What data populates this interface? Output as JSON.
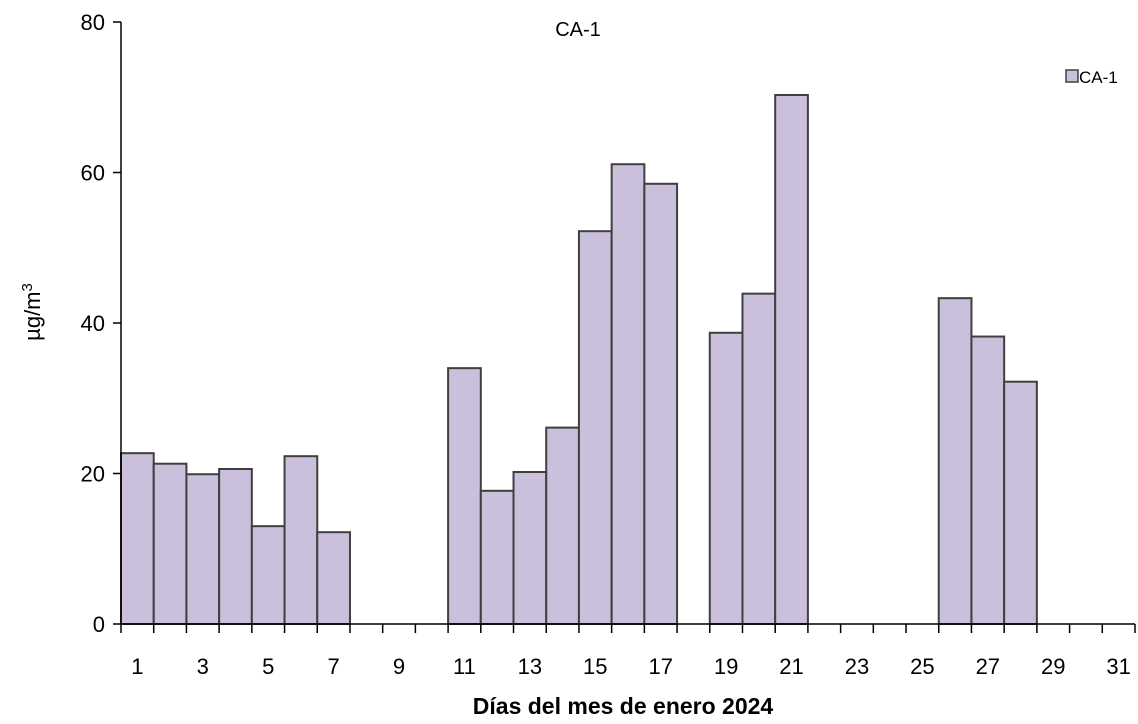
{
  "chart_data": {
    "type": "bar",
    "title": "CA-1",
    "xlabel": "Días del mes de enero 2024",
    "ylabel": "µg/m",
    "ylabel_superscript": "3",
    "ylim": [
      0,
      80
    ],
    "yticks": [
      0,
      20,
      40,
      60,
      80
    ],
    "xtick_labels": [
      "1",
      "3",
      "5",
      "7",
      "9",
      "11",
      "13",
      "15",
      "17",
      "19",
      "21",
      "23",
      "25",
      "27",
      "29",
      "31"
    ],
    "categories": [
      "1",
      "2",
      "3",
      "4",
      "5",
      "6",
      "7",
      "8",
      "9",
      "10",
      "11",
      "12",
      "13",
      "14",
      "15",
      "16",
      "17",
      "18",
      "19",
      "20",
      "21",
      "22",
      "23",
      "24",
      "25",
      "26",
      "27",
      "28",
      "29",
      "30",
      "31"
    ],
    "series": [
      {
        "name": "CA-1",
        "color": "#cbc0db",
        "values": [
          22.7,
          21.3,
          19.9,
          20.6,
          13.0,
          22.3,
          12.2,
          null,
          null,
          null,
          34.0,
          17.7,
          20.2,
          26.1,
          52.2,
          61.1,
          58.5,
          null,
          38.7,
          43.9,
          70.3,
          null,
          null,
          null,
          null,
          43.3,
          38.2,
          32.2,
          null,
          null,
          null
        ]
      }
    ],
    "grid": false,
    "legend_position": "top-right"
  }
}
